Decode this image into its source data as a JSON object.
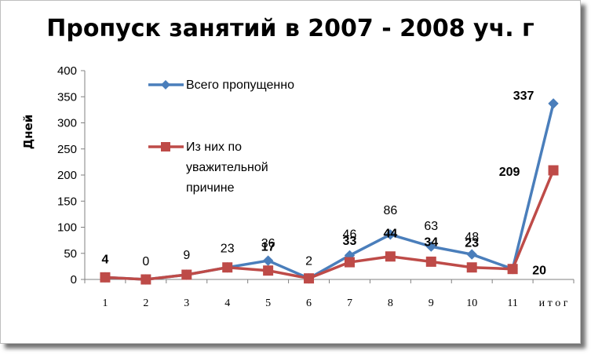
{
  "chart_data": {
    "type": "line",
    "title": "Пропуск занятий в 2007 - 2008 уч. г",
    "xlabel": "",
    "ylabel": "Дней",
    "categories": [
      "1",
      "2",
      "3",
      "4",
      "5",
      "6",
      "7",
      "8",
      "9",
      "10",
      "11",
      "и т о г"
    ],
    "ylim": [
      0,
      400
    ],
    "yticks": [
      0,
      50,
      100,
      150,
      200,
      250,
      300,
      350,
      400
    ],
    "grid": false,
    "legend_position": "top-left",
    "series": [
      {
        "name": "Всего пропущенно",
        "color": "#4a7ebb",
        "marker": "diamond",
        "values": [
          4,
          0,
          9,
          23,
          36,
          2,
          46,
          86,
          63,
          48,
          20,
          337
        ],
        "labels": [
          "",
          "0",
          "9",
          "23",
          "36",
          "2",
          "46",
          "86",
          "63",
          "48",
          "",
          "337"
        ]
      },
      {
        "name": "Из них по уважительной причине",
        "color": "#be4b48",
        "marker": "square",
        "values": [
          4,
          0,
          9,
          23,
          17,
          2,
          33,
          44,
          34,
          23,
          20,
          209
        ],
        "labels": [
          "4",
          "",
          "",
          "",
          "17",
          "",
          "33",
          "44",
          "34",
          "23",
          "20",
          "209"
        ]
      }
    ]
  }
}
